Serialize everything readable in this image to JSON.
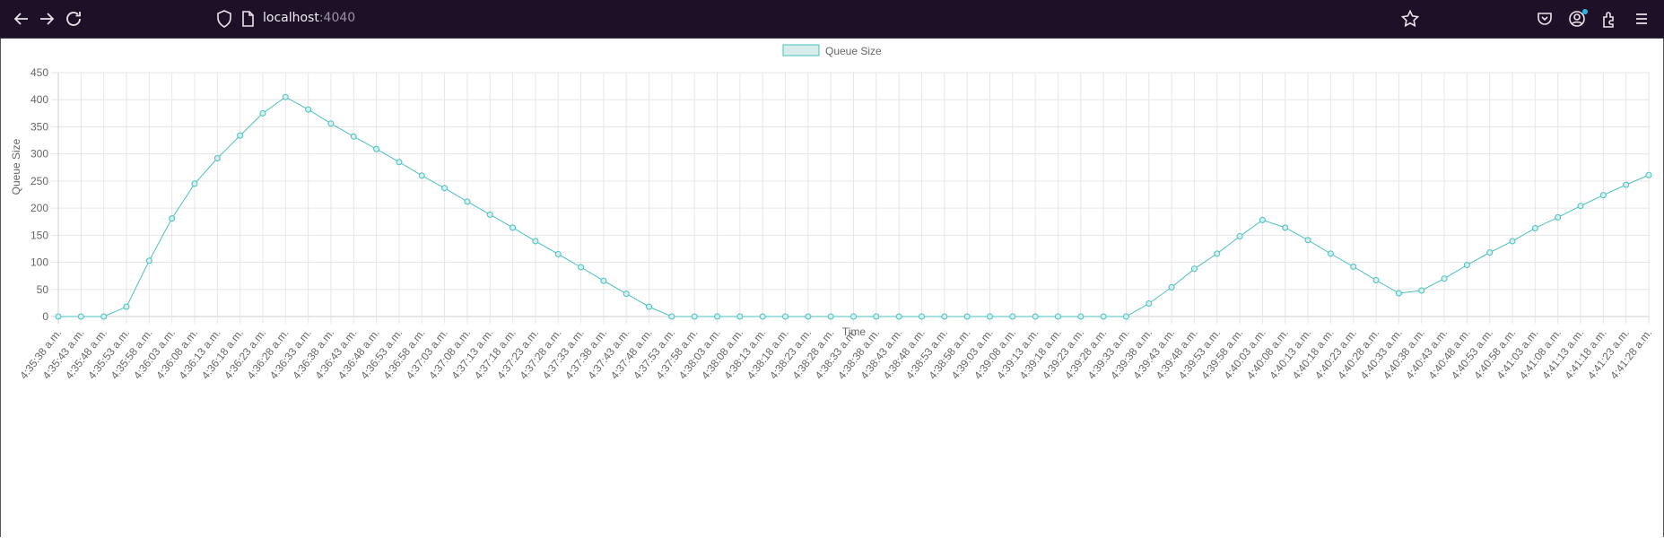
{
  "browser": {
    "url_host": "localhost",
    "url_port": ":4040"
  },
  "chart_data": {
    "type": "line",
    "legend_label": "Queue Size",
    "legend_position": "top",
    "xlabel": "Time",
    "ylabel": "Queue Size",
    "ylim": [
      0,
      450
    ],
    "y_ticks": [
      0,
      50,
      100,
      150,
      200,
      250,
      300,
      350,
      400,
      450
    ],
    "grid": true,
    "color": "#4bc0c0",
    "categories": [
      "4:35:38 a.m.",
      "4:35:43 a.m.",
      "4:35:48 a.m.",
      "4:35:53 a.m.",
      "4:35:58 a.m.",
      "4:36:03 a.m.",
      "4:36:08 a.m.",
      "4:36:13 a.m.",
      "4:36:18 a.m.",
      "4:36:23 a.m.",
      "4:36:28 a.m.",
      "4:36:33 a.m.",
      "4:36:38 a.m.",
      "4:36:43 a.m.",
      "4:36:48 a.m.",
      "4:36:53 a.m.",
      "4:36:58 a.m.",
      "4:37:03 a.m.",
      "4:37:08 a.m.",
      "4:37:13 a.m.",
      "4:37:18 a.m.",
      "4:37:23 a.m.",
      "4:37:28 a.m.",
      "4:37:33 a.m.",
      "4:37:38 a.m.",
      "4:37:43 a.m.",
      "4:37:48 a.m.",
      "4:37:53 a.m.",
      "4:37:58 a.m.",
      "4:38:03 a.m.",
      "4:38:08 a.m.",
      "4:38:13 a.m.",
      "4:38:18 a.m.",
      "4:38:23 a.m.",
      "4:38:28 a.m.",
      "4:38:33 a.m.",
      "4:38:38 a.m.",
      "4:38:43 a.m.",
      "4:38:48 a.m.",
      "4:38:53 a.m.",
      "4:38:58 a.m.",
      "4:39:03 a.m.",
      "4:39:08 a.m.",
      "4:39:13 a.m.",
      "4:39:18 a.m.",
      "4:39:23 a.m.",
      "4:39:28 a.m.",
      "4:39:33 a.m.",
      "4:39:38 a.m.",
      "4:39:43 a.m.",
      "4:39:48 a.m.",
      "4:39:53 a.m.",
      "4:39:58 a.m.",
      "4:40:03 a.m.",
      "4:40:08 a.m.",
      "4:40:13 a.m.",
      "4:40:18 a.m.",
      "4:40:23 a.m.",
      "4:40:28 a.m.",
      "4:40:33 a.m.",
      "4:40:38 a.m.",
      "4:40:43 a.m.",
      "4:40:48 a.m.",
      "4:40:53 a.m.",
      "4:40:58 a.m.",
      "4:41:03 a.m.",
      "4:41:08 a.m.",
      "4:41:13 a.m.",
      "4:41:18 a.m.",
      "4:41:23 a.m.",
      "4:41:28 a.m."
    ],
    "values": [
      0,
      0,
      0,
      18,
      103,
      181,
      245,
      292,
      334,
      375,
      405,
      382,
      356,
      332,
      309,
      285,
      260,
      237,
      212,
      188,
      164,
      139,
      115,
      91,
      66,
      42,
      18,
      0,
      0,
      0,
      0,
      0,
      0,
      0,
      0,
      0,
      0,
      0,
      0,
      0,
      0,
      0,
      0,
      0,
      0,
      0,
      0,
      0,
      24,
      54,
      88,
      116,
      148,
      178,
      164,
      141,
      116,
      92,
      67,
      43,
      48,
      70,
      95,
      118,
      139,
      163,
      183,
      204,
      224,
      243,
      261
    ]
  }
}
